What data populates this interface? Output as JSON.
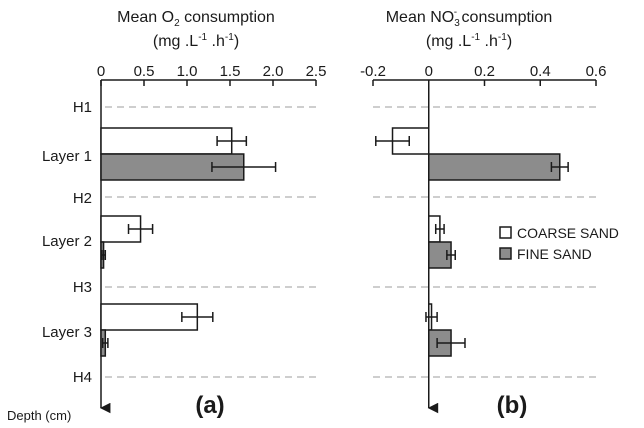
{
  "chart_data": [
    {
      "type": "bar",
      "orientation": "horizontal",
      "title": "Mean O2 consumption",
      "title_parts": {
        "pre": "Mean O",
        "sub": "2",
        "post": " consumption"
      },
      "units": {
        "pre": "(mg .L",
        "sup1": "-1",
        "mid": " .h",
        "sup2": "-1",
        "post": ")"
      },
      "panel_label": "(a)",
      "xlim": [
        0,
        2.5
      ],
      "xticks": [
        "0",
        "0.5",
        "1.0",
        "1.5",
        "2.0",
        "2.5"
      ],
      "xtick_values": [
        0,
        0.5,
        1.0,
        1.5,
        2.0,
        2.5
      ],
      "categories": [
        "Layer 1",
        "Layer 2",
        "Layer 3"
      ],
      "series": [
        {
          "name": "COARSE SAND",
          "values": [
            1.52,
            0.46,
            1.12
          ],
          "errors": [
            0.17,
            0.14,
            0.18
          ]
        },
        {
          "name": "FINE SAND",
          "values": [
            1.66,
            0.03,
            0.05
          ],
          "errors": [
            0.37,
            0.02,
            0.03
          ]
        }
      ]
    },
    {
      "type": "bar",
      "orientation": "horizontal",
      "title": "Mean NO3- consumption",
      "title_parts": {
        "pre": "Mean NO",
        "sub": "3",
        "sup": "-",
        "post": " consumption"
      },
      "units": {
        "pre": "(mg .L",
        "sup1": "-1",
        "mid": " .h",
        "sup2": "-1",
        "post": ")"
      },
      "panel_label": "(b)",
      "xlim": [
        -0.2,
        0.6
      ],
      "xticks": [
        "-0.2",
        "0",
        "0.2",
        "0.4",
        "0.6"
      ],
      "xtick_values": [
        -0.2,
        0,
        0.2,
        0.4,
        0.6
      ],
      "categories": [
        "Layer 1",
        "Layer 2",
        "Layer 3"
      ],
      "series": [
        {
          "name": "COARSE SAND",
          "values": [
            -0.13,
            0.04,
            0.01
          ],
          "errors": [
            0.06,
            0.015,
            0.02
          ]
        },
        {
          "name": "FINE SAND",
          "values": [
            0.47,
            0.08,
            0.08
          ],
          "errors": [
            0.03,
            0.015,
            0.05
          ]
        }
      ]
    }
  ],
  "depth_labels": [
    "H1",
    "H2",
    "H3",
    "H4"
  ],
  "y_axis_label": "Depth (cm)",
  "legend": [
    {
      "label": "COARSE SAND",
      "fill": "#ffffff"
    },
    {
      "label": "FINE SAND",
      "fill": "#8c8c8c"
    }
  ],
  "colors": {
    "coarse": "#ffffff",
    "fine": "#8c8c8c",
    "edge": "#1a1a1a",
    "gridline": "#c8c8c8"
  }
}
